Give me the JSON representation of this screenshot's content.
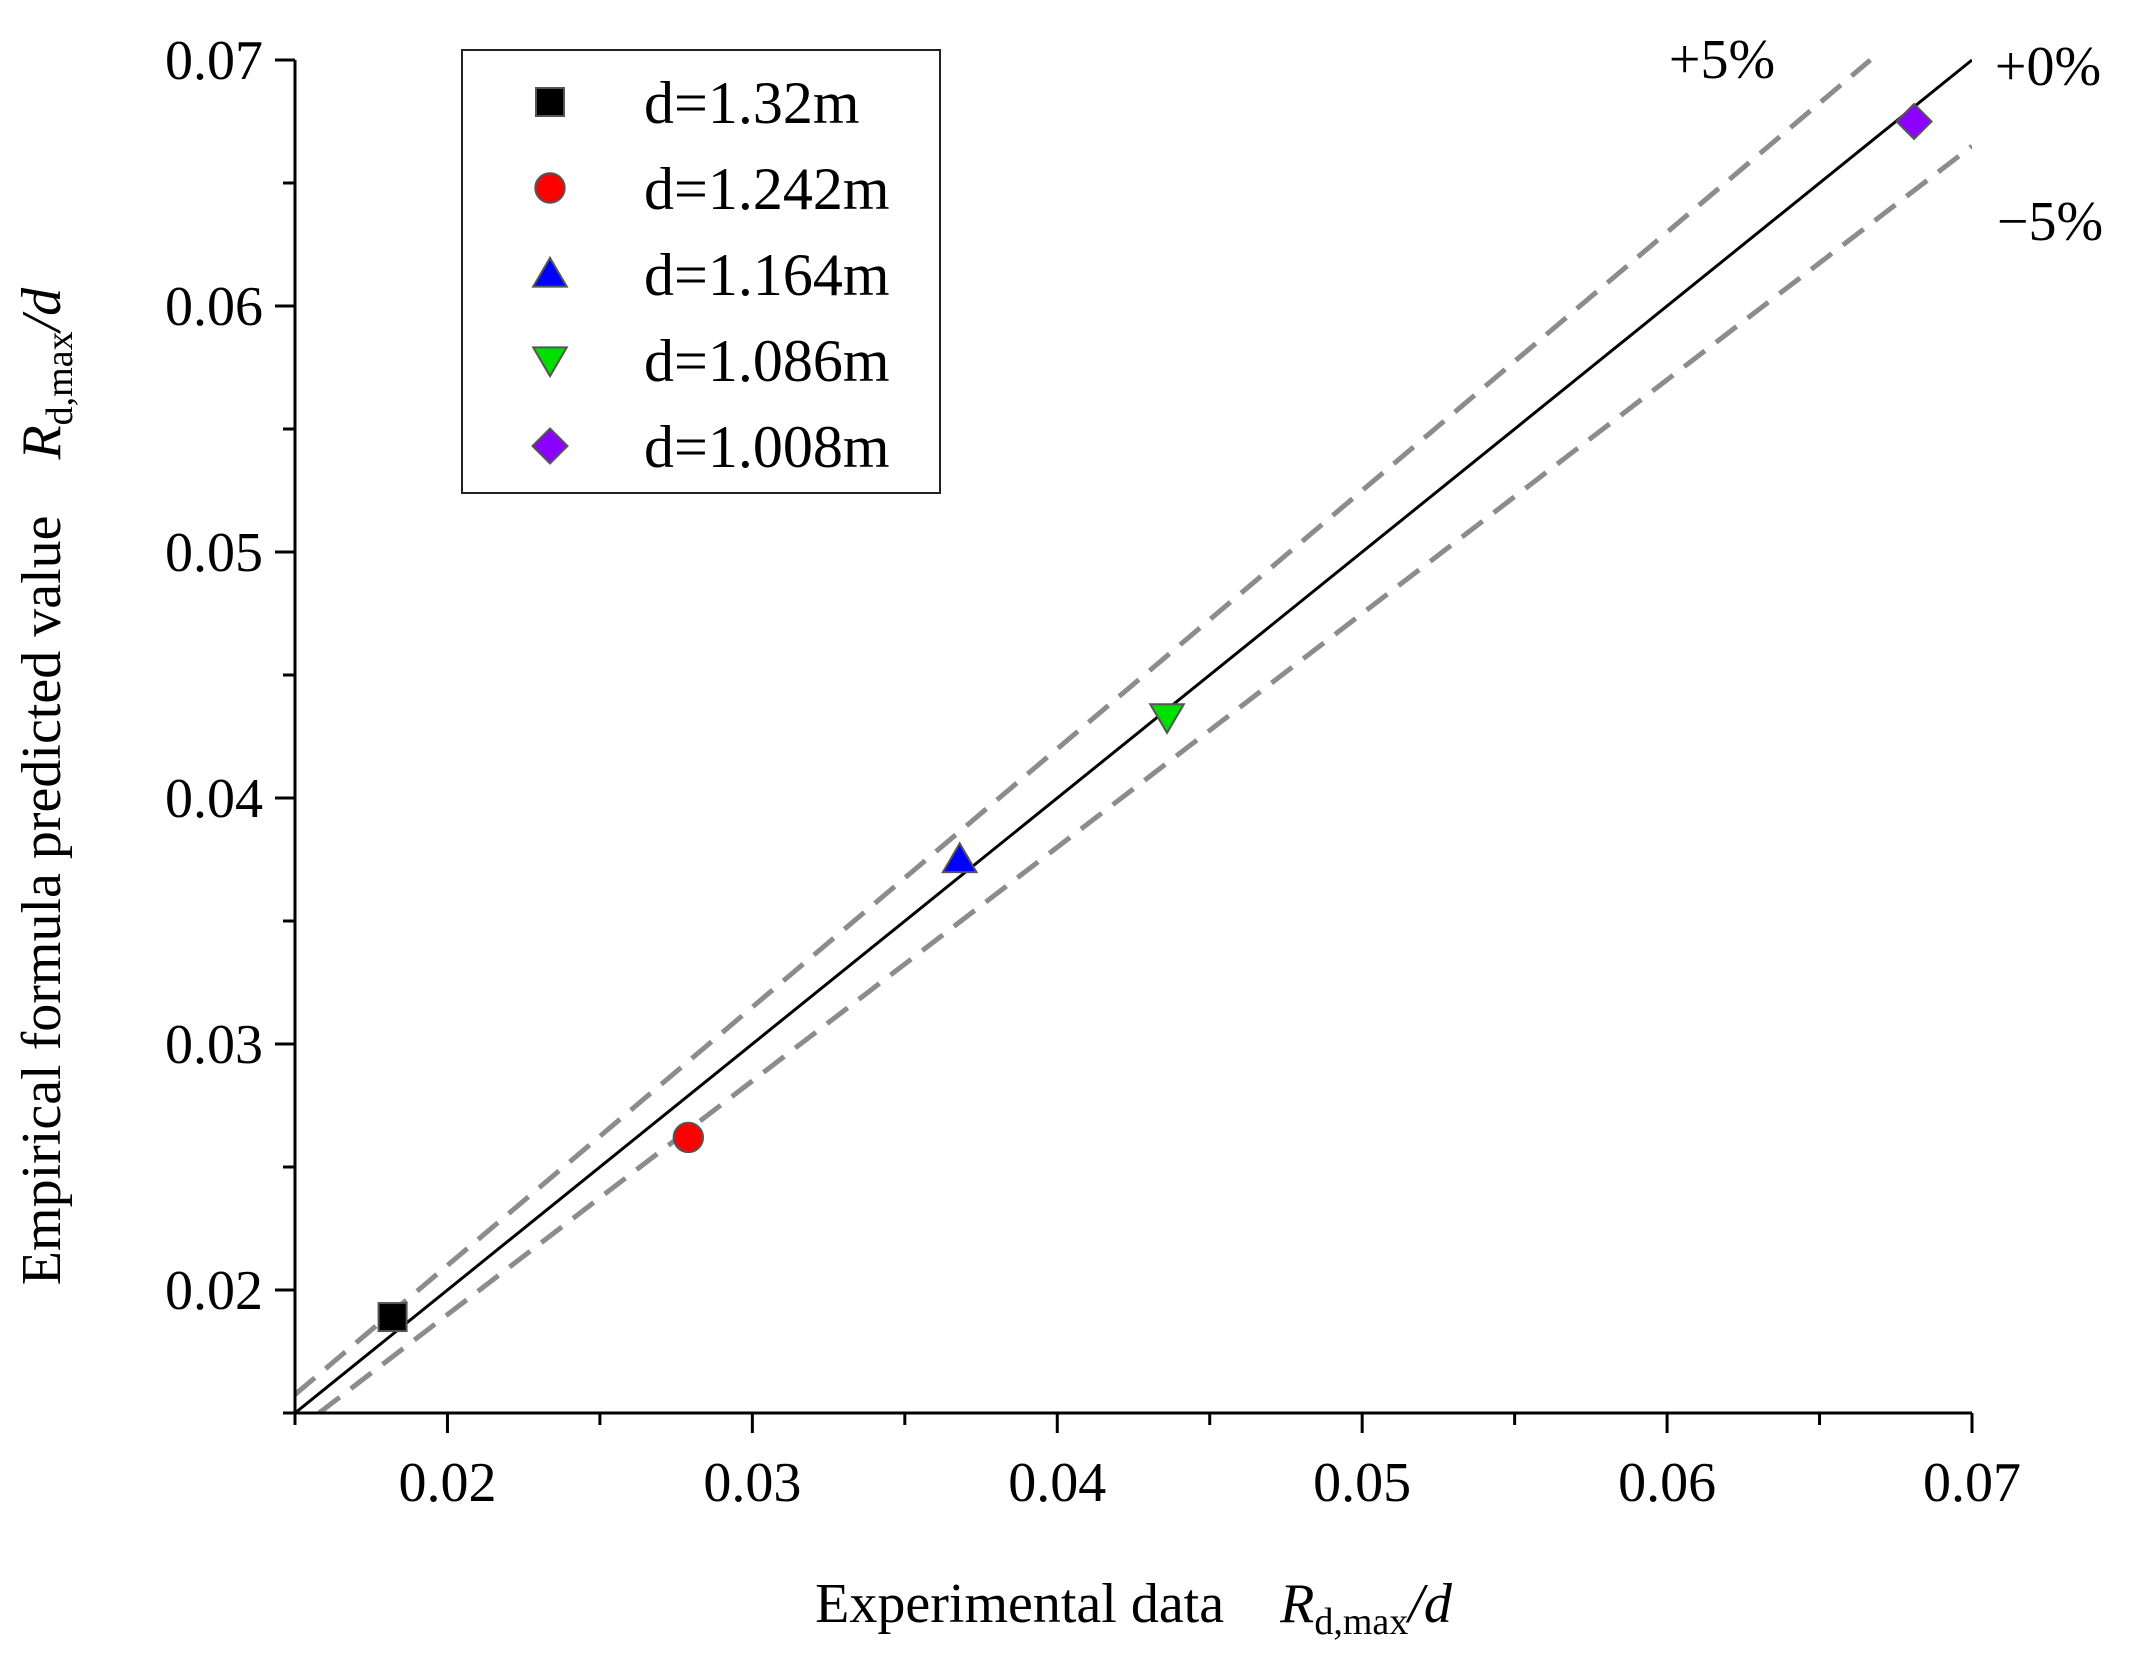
{
  "chart_data": {
    "type": "scatter",
    "title": "",
    "xlabel": {
      "prefix": "Experimental data",
      "var": "R",
      "sub": "d,max",
      "suffix": "/d"
    },
    "ylabel": {
      "prefix": "Empirical formula predicted value",
      "var": "R",
      "sub": "d,max",
      "suffix": "/d"
    },
    "xlim": [
      0.015,
      0.07
    ],
    "ylim": [
      0.015,
      0.07
    ],
    "xticks": [
      0.02,
      0.03,
      0.04,
      0.05,
      0.06,
      0.07
    ],
    "yticks": [
      0.02,
      0.03,
      0.04,
      0.05,
      0.06,
      0.07
    ],
    "xtick_labels": [
      "0.02",
      "0.03",
      "0.04",
      "0.05",
      "0.06",
      "0.07"
    ],
    "ytick_labels": [
      "0.02",
      "0.03",
      "0.04",
      "0.05",
      "0.06",
      "0.07"
    ],
    "legend_position": "top-left",
    "series": [
      {
        "name": "d=1.32m",
        "marker": "square",
        "color": "#000000",
        "x": 0.0182,
        "y": 0.0189
      },
      {
        "name": "d=1.242m",
        "marker": "circle",
        "color": "#ff0000",
        "x": 0.0279,
        "y": 0.0262
      },
      {
        "name": "d=1.164m",
        "marker": "triangle-up",
        "color": "#0000ff",
        "x": 0.0368,
        "y": 0.0375
      },
      {
        "name": "d=1.086m",
        "marker": "triangle-down",
        "color": "#00e000",
        "x": 0.0436,
        "y": 0.0433
      },
      {
        "name": "d=1.008m",
        "marker": "diamond",
        "color": "#8b00ff",
        "x": 0.0681,
        "y": 0.0675
      }
    ],
    "reference_lines": [
      {
        "label": "+0%",
        "factor": 1.0,
        "color": "#000000",
        "style": "solid"
      },
      {
        "label": "+5%",
        "factor": 1.05,
        "color": "#8c8c8c",
        "style": "dashed"
      },
      {
        "label": "−5%",
        "factor": 0.95,
        "color": "#8c8c8c",
        "style": "dashed"
      }
    ]
  }
}
